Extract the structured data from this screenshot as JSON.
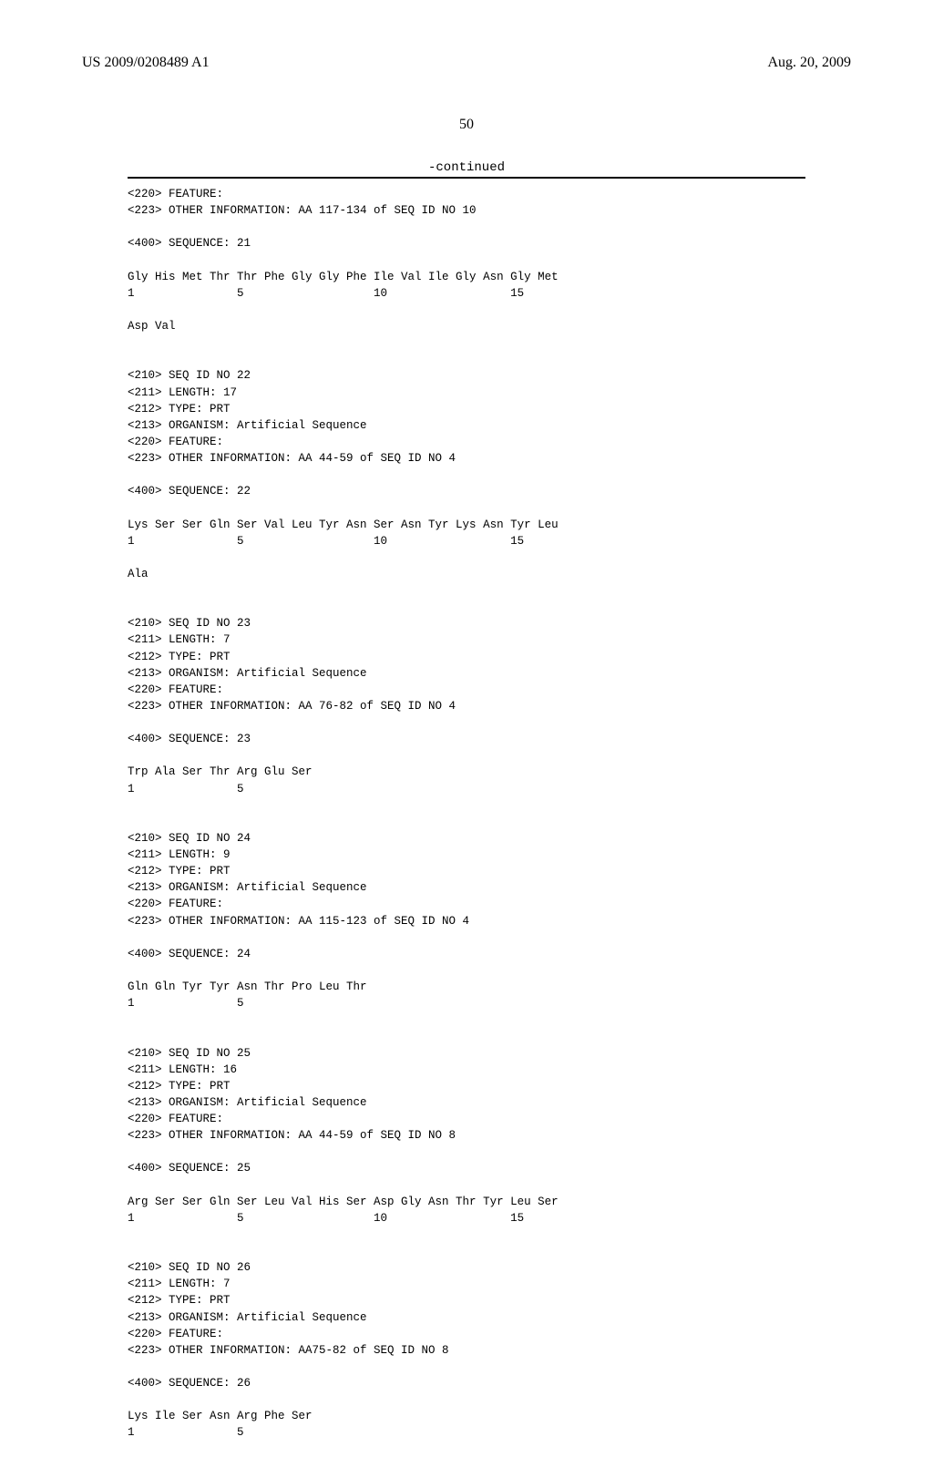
{
  "header": {
    "pubNumber": "US 2009/0208489 A1",
    "pubDate": "Aug. 20, 2009"
  },
  "pageNumber": "50",
  "continuedLabel": "-continued",
  "listing": "<220> FEATURE:\n<223> OTHER INFORMATION: AA 117-134 of SEQ ID NO 10\n\n<400> SEQUENCE: 21\n\nGly His Met Thr Thr Phe Gly Gly Phe Ile Val Ile Gly Asn Gly Met\n1               5                   10                  15\n\nAsp Val\n\n\n<210> SEQ ID NO 22\n<211> LENGTH: 17\n<212> TYPE: PRT\n<213> ORGANISM: Artificial Sequence\n<220> FEATURE:\n<223> OTHER INFORMATION: AA 44-59 of SEQ ID NO 4\n\n<400> SEQUENCE: 22\n\nLys Ser Ser Gln Ser Val Leu Tyr Asn Ser Asn Tyr Lys Asn Tyr Leu\n1               5                   10                  15\n\nAla\n\n\n<210> SEQ ID NO 23\n<211> LENGTH: 7\n<212> TYPE: PRT\n<213> ORGANISM: Artificial Sequence\n<220> FEATURE:\n<223> OTHER INFORMATION: AA 76-82 of SEQ ID NO 4\n\n<400> SEQUENCE: 23\n\nTrp Ala Ser Thr Arg Glu Ser\n1               5\n\n\n<210> SEQ ID NO 24\n<211> LENGTH: 9\n<212> TYPE: PRT\n<213> ORGANISM: Artificial Sequence\n<220> FEATURE:\n<223> OTHER INFORMATION: AA 115-123 of SEQ ID NO 4\n\n<400> SEQUENCE: 24\n\nGln Gln Tyr Tyr Asn Thr Pro Leu Thr\n1               5\n\n\n<210> SEQ ID NO 25\n<211> LENGTH: 16\n<212> TYPE: PRT\n<213> ORGANISM: Artificial Sequence\n<220> FEATURE:\n<223> OTHER INFORMATION: AA 44-59 of SEQ ID NO 8\n\n<400> SEQUENCE: 25\n\nArg Ser Ser Gln Ser Leu Val His Ser Asp Gly Asn Thr Tyr Leu Ser\n1               5                   10                  15\n\n\n<210> SEQ ID NO 26\n<211> LENGTH: 7\n<212> TYPE: PRT\n<213> ORGANISM: Artificial Sequence\n<220> FEATURE:\n<223> OTHER INFORMATION: AA75-82 of SEQ ID NO 8\n\n<400> SEQUENCE: 26\n\nLys Ile Ser Asn Arg Phe Ser\n1               5"
}
